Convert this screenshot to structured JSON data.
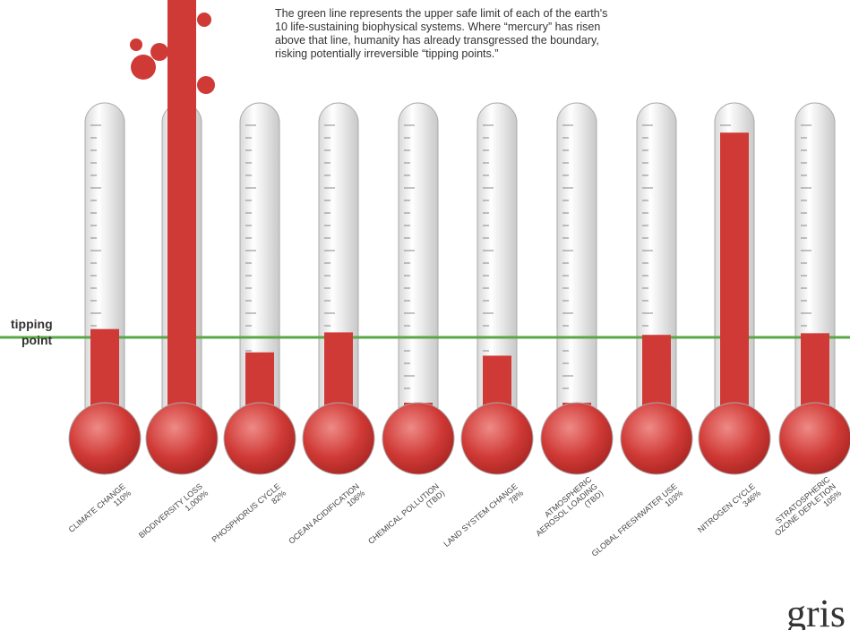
{
  "chart_data": {
    "type": "thermometer",
    "annotation": [
      "The green line represents the upper safe limit of each of the earth's",
      "10 life-sustaining biophysical systems. Where “mercury” has risen",
      "above that line, humanity has already transgressed the boundary,",
      "risking potentially irreversible “tipping points.”"
    ],
    "threshold_label": [
      "tipping",
      "point"
    ],
    "categories": [
      [
        "CLIMATE CHANGE"
      ],
      [
        "BIODIVERSITY LOSS"
      ],
      [
        "PHOSPHORUS CYCLE"
      ],
      [
        "OCEAN ACIDIFICATION"
      ],
      [
        "CHEMICAL POLLUTION"
      ],
      [
        "LAND SYSTEM CHANGE"
      ],
      [
        "ATMOSPHERIC",
        "AEROSOL LOADING"
      ],
      [
        "GLOBAL FRESHWATER USE"
      ],
      [
        "NITROGEN CYCLE"
      ],
      [
        "STRATOSPHERIC",
        "OZONE DEPLETION"
      ]
    ],
    "values": [
      110,
      1000,
      82,
      106,
      null,
      78,
      null,
      103,
      346,
      105
    ],
    "value_labels": [
      "110%",
      "1,000%",
      "82%",
      "106%",
      "(TBD)",
      "78%",
      "(TBD)",
      "103%",
      "346%",
      "105%"
    ],
    "color": "#d03a36",
    "threshold_color": "#5aa845",
    "logo": "gris"
  }
}
